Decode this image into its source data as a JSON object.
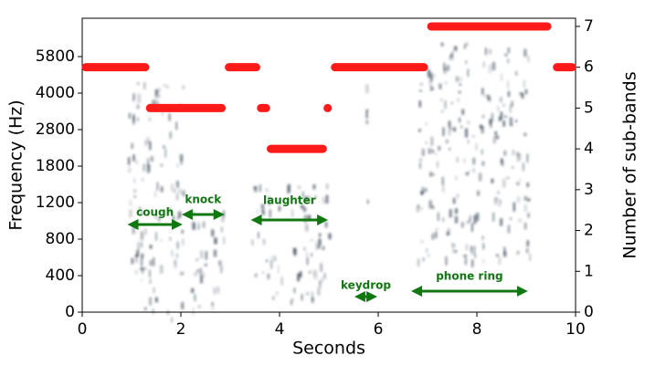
{
  "chart_data": {
    "type": "segments",
    "x_label": "Seconds",
    "y_label": "Frequency (Hz)",
    "y2_label": "Number of sub-bands",
    "xlim": [
      0,
      10
    ],
    "xticks": [
      0,
      2,
      4,
      6,
      8,
      10
    ],
    "yscale": "even-ticks",
    "yticks": [
      0,
      400,
      800,
      1200,
      1800,
      2800,
      4000,
      5800
    ],
    "y2lim": [
      0,
      7.2
    ],
    "y2ticks": [
      0,
      1,
      2,
      3,
      4,
      5,
      6,
      7
    ],
    "color": "#ff1a1a",
    "segments": [
      {
        "start": 0,
        "end": 1.35,
        "value": 6
      },
      {
        "start": 1.3,
        "end": 2.9,
        "value": 5
      },
      {
        "start": 2.9,
        "end": 3.6,
        "value": 6
      },
      {
        "start": 3.55,
        "end": 3.8,
        "value": 5
      },
      {
        "start": 3.75,
        "end": 4.95,
        "value": 4
      },
      {
        "start": 4.9,
        "end": 5.05,
        "value": 5
      },
      {
        "start": 5.05,
        "end": 7.0,
        "value": 6
      },
      {
        "start": 7.0,
        "end": 9.5,
        "value": 7
      },
      {
        "start": 9.55,
        "end": 10,
        "value": 6
      }
    ],
    "annotation_color": "#117711",
    "annotations": [
      {
        "text": "cough",
        "start": 0.95,
        "end": 2.0
      },
      {
        "text": "knock",
        "start": 2.05,
        "end": 2.85
      },
      {
        "text": "laughter",
        "start": 3.45,
        "end": 4.95
      },
      {
        "text": "keydrop",
        "start": 5.55,
        "end": 5.95
      },
      {
        "text": "phone ring",
        "start": 6.7,
        "end": 9.0
      }
    ]
  }
}
